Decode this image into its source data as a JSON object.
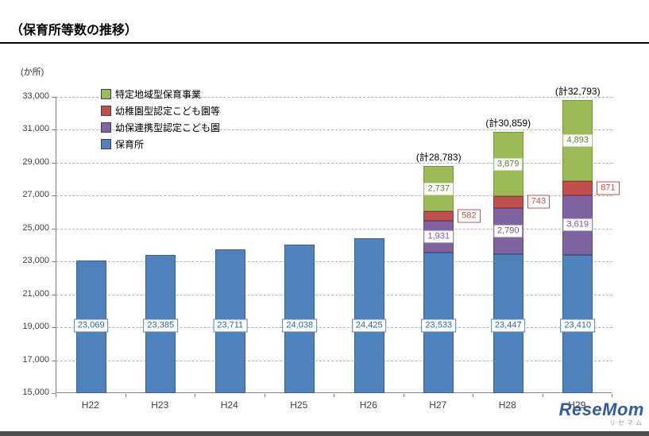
{
  "page": {
    "title": "（保育所等数の推移）"
  },
  "watermark": {
    "brand": "ReseMom",
    "sub": "リセマム"
  },
  "chart_data": {
    "type": "bar",
    "stacked": true,
    "title": "（保育所等数の推移）",
    "ylabel": "(か所)",
    "ylim": [
      15000,
      33000
    ],
    "ytick_step": 2000,
    "grid": true,
    "legend_position": "top-left-inside",
    "categories": [
      "H22",
      "H23",
      "H24",
      "H25",
      "H26",
      "H27",
      "H28",
      "H29"
    ],
    "series": [
      {
        "name": "保育所",
        "color": "#4f81bd",
        "border": "#39618f",
        "label_color": "#31679b",
        "values": [
          23069,
          23385,
          23711,
          24038,
          24425,
          23533,
          23447,
          23410
        ]
      },
      {
        "name": "幼保連携型認定こども園",
        "color": "#8064a2",
        "border": "#5f4b79",
        "label_color": "#7d4fa0",
        "values": [
          null,
          null,
          null,
          null,
          null,
          1931,
          2790,
          3619
        ]
      },
      {
        "name": "幼稚園型認定こども園等",
        "color": "#c0504d",
        "border": "#953734",
        "label_color": "#c0504d",
        "values": [
          null,
          null,
          null,
          null,
          null,
          582,
          743,
          871
        ]
      },
      {
        "name": "特定地域型保育事業",
        "color": "#9bbb59",
        "border": "#76923c",
        "label_color": "#578232",
        "values": [
          null,
          null,
          null,
          null,
          null,
          2737,
          3879,
          4893
        ]
      }
    ],
    "totals": [
      null,
      null,
      null,
      null,
      null,
      28783,
      30859,
      32793
    ],
    "total_prefix": "計",
    "legend_order": [
      "特定地域型保育事業",
      "幼稚園型認定こども園等",
      "幼保連携型認定こども園",
      "保育所"
    ],
    "value_label_level": 19100
  }
}
